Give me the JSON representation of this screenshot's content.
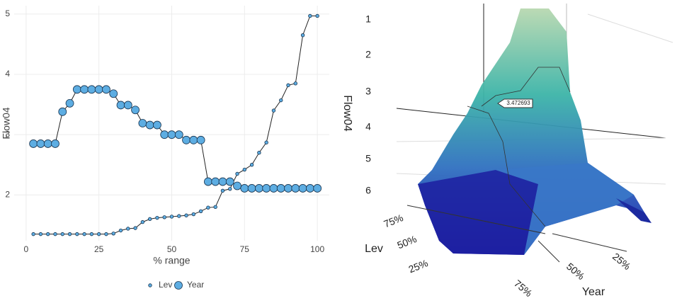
{
  "chart_data": [
    {
      "type": "line",
      "xlabel": "% range",
      "ylabel": "Flow04",
      "x": [
        2.5,
        5,
        7.5,
        10,
        12.5,
        15,
        17.5,
        20,
        22.5,
        25,
        27.5,
        30,
        32.5,
        35,
        37.5,
        40,
        42.5,
        45,
        47.5,
        50,
        52.5,
        55,
        57.5,
        60,
        62.5,
        65,
        67.5,
        70,
        72.5,
        75,
        77.5,
        80,
        82.5,
        85,
        87.5,
        90,
        92.5,
        95,
        97.5,
        100
      ],
      "series": [
        {
          "name": "Lev",
          "color": "#5dade2",
          "size": "small",
          "values": [
            1.35,
            1.35,
            1.35,
            1.35,
            1.35,
            1.35,
            1.35,
            1.35,
            1.35,
            1.35,
            1.35,
            1.36,
            1.41,
            1.44,
            1.45,
            1.55,
            1.6,
            1.62,
            1.63,
            1.64,
            1.65,
            1.66,
            1.68,
            1.73,
            1.79,
            1.8,
            2.07,
            2.1,
            2.35,
            2.42,
            2.5,
            2.7,
            2.87,
            3.4,
            3.57,
            3.82,
            3.85,
            4.65,
            4.97,
            4.97
          ]
        },
        {
          "name": "Year",
          "color": "#5dade2",
          "size": "large",
          "values": [
            2.85,
            2.85,
            2.85,
            2.85,
            3.38,
            3.52,
            3.75,
            3.75,
            3.75,
            3.75,
            3.75,
            3.68,
            3.49,
            3.49,
            3.41,
            3.19,
            3.16,
            3.16,
            3.0,
            3.0,
            3.0,
            2.91,
            2.91,
            2.91,
            2.22,
            2.22,
            2.22,
            2.22,
            2.15,
            2.11,
            2.11,
            2.11,
            2.11,
            2.11,
            2.11,
            2.11,
            2.11,
            2.11,
            2.11,
            2.11
          ]
        }
      ],
      "xlim": [
        -4.1,
        104.1
      ],
      "xticks": [
        0,
        25,
        50,
        75,
        100
      ],
      "ylim": [
        1.24,
        5.14
      ],
      "yticks": [
        2,
        3,
        4,
        5
      ],
      "grid": true,
      "legend": "bottom"
    },
    {
      "type": "surface",
      "zlabel": "Flow04",
      "xlabel": "Lev",
      "ylabel": "Year",
      "zticks": [
        1,
        2,
        3,
        4,
        5,
        6
      ],
      "xticks": [
        {
          "value": 75,
          "label": "75%"
        },
        {
          "value": 50,
          "label": "50%"
        },
        {
          "value": 25,
          "label": "25%"
        }
      ],
      "yticks": [
        {
          "value": 75,
          "label": "75%"
        },
        {
          "value": 50,
          "label": "50%"
        },
        {
          "value": 25,
          "label": "25%"
        }
      ],
      "tooltip": "3.472693"
    }
  ]
}
